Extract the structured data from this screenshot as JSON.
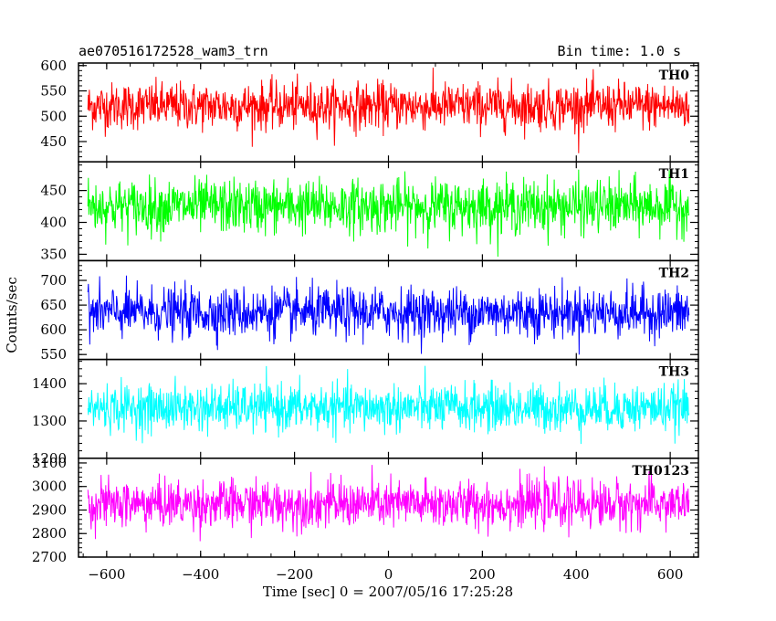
{
  "chart_data": {
    "type": "line",
    "title": "ae070516172528_wam3_trn",
    "subtitle": "Bin time: 1.0 s",
    "ylabel": "Counts/sec",
    "xlabel": "Time [sec] 0 = 2007/05/16 17:25:28",
    "xlim": [
      -660,
      660
    ],
    "x_ticks": [
      -600,
      -400,
      -200,
      0,
      200,
      400,
      600
    ],
    "x_tick_labels": [
      "−600",
      "−400",
      "−200",
      "0",
      "200",
      "400",
      "600"
    ],
    "x_data_range": [
      -640,
      640
    ],
    "panels": [
      {
        "name": "TH0",
        "color": "#ff0000",
        "ylim": [
          410,
          605
        ],
        "ticks": [
          450,
          500,
          550,
          600
        ],
        "mean": 520,
        "spread": 55
      },
      {
        "name": "TH1",
        "color": "#00ff00",
        "ylim": [
          340,
          495
        ],
        "ticks": [
          350,
          400,
          450
        ],
        "mean": 425,
        "spread": 50
      },
      {
        "name": "TH2",
        "color": "#0000ff",
        "ylim": [
          540,
          740
        ],
        "ticks": [
          550,
          600,
          650,
          700
        ],
        "mean": 635,
        "spread": 60
      },
      {
        "name": "TH3",
        "color": "#00ffff",
        "ylim": [
          1200,
          1465
        ],
        "ticks": [
          1200,
          1300,
          1400
        ],
        "mean": 1335,
        "spread": 75
      },
      {
        "name": "TH0123",
        "color": "#ff00ff",
        "ylim": [
          2700,
          3120
        ],
        "ticks": [
          2700,
          2800,
          2900,
          3000,
          3100
        ],
        "mean": 2925,
        "spread": 120
      }
    ]
  }
}
